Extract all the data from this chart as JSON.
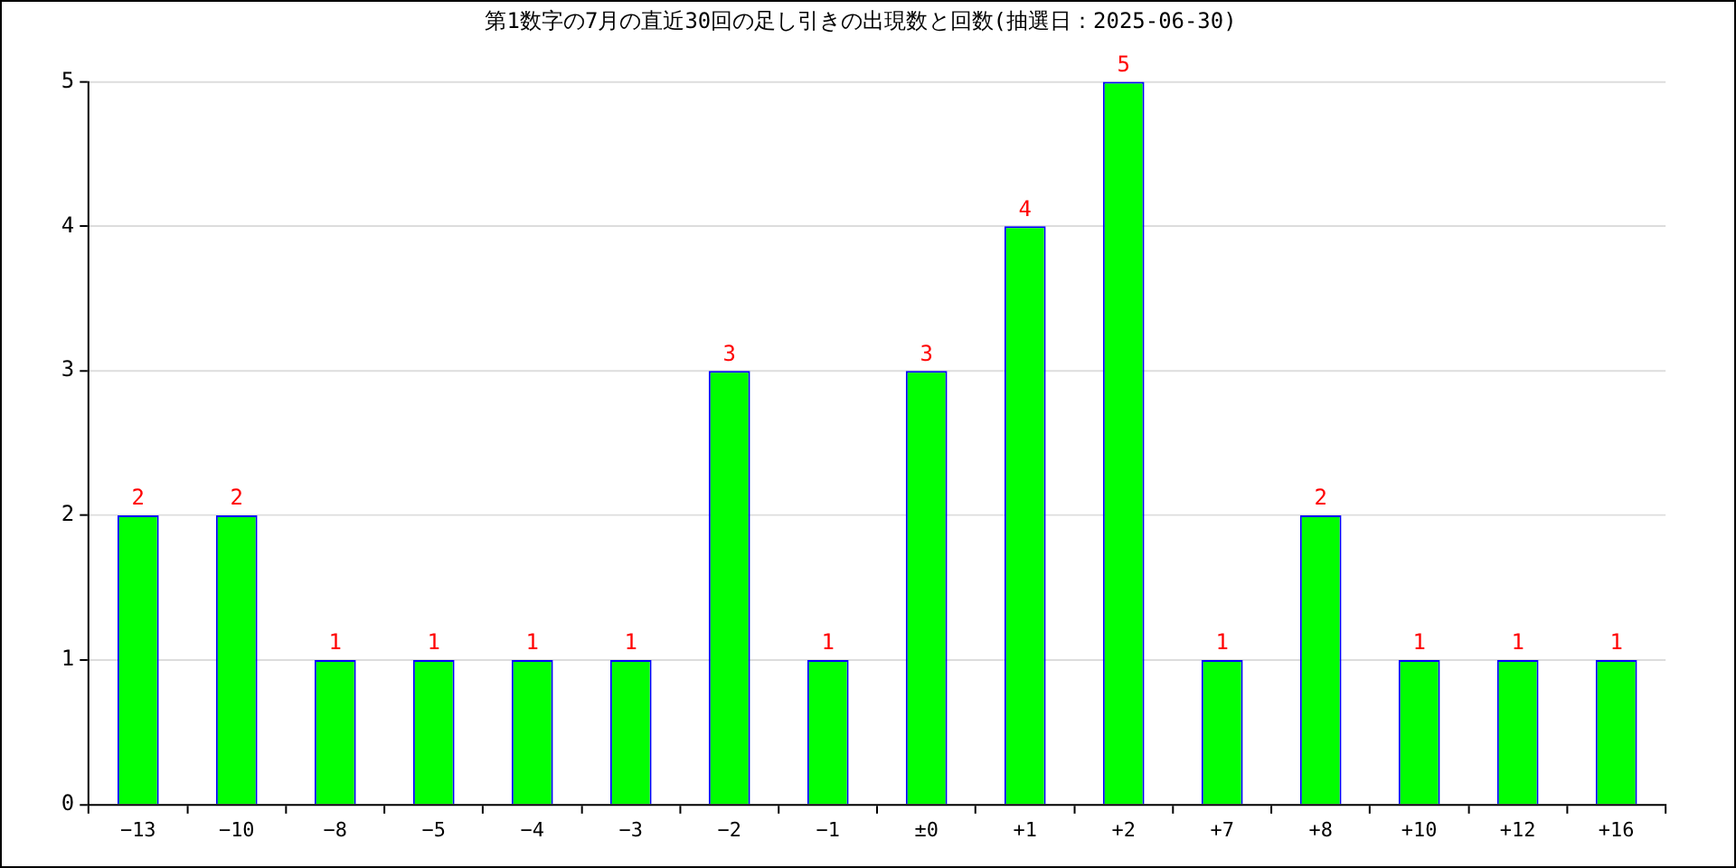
{
  "chart_data": {
    "type": "bar",
    "title": "第1数字の7月の直近30回の足し引きの出現数と回数(抽選日：2025-06-30)",
    "categories": [
      "−13",
      "−10",
      "−8",
      "−5",
      "−4",
      "−3",
      "−2",
      "−1",
      "±0",
      "+1",
      "+2",
      "+7",
      "+8",
      "+10",
      "+12",
      "+16"
    ],
    "values": [
      2,
      2,
      1,
      1,
      1,
      1,
      3,
      1,
      3,
      4,
      5,
      1,
      2,
      1,
      1,
      1
    ],
    "color": "#00ff00",
    "ylim": [
      0,
      5
    ],
    "yticks": [
      0,
      1,
      2,
      3,
      4,
      5
    ],
    "grid": "y",
    "data_labels": true
  }
}
